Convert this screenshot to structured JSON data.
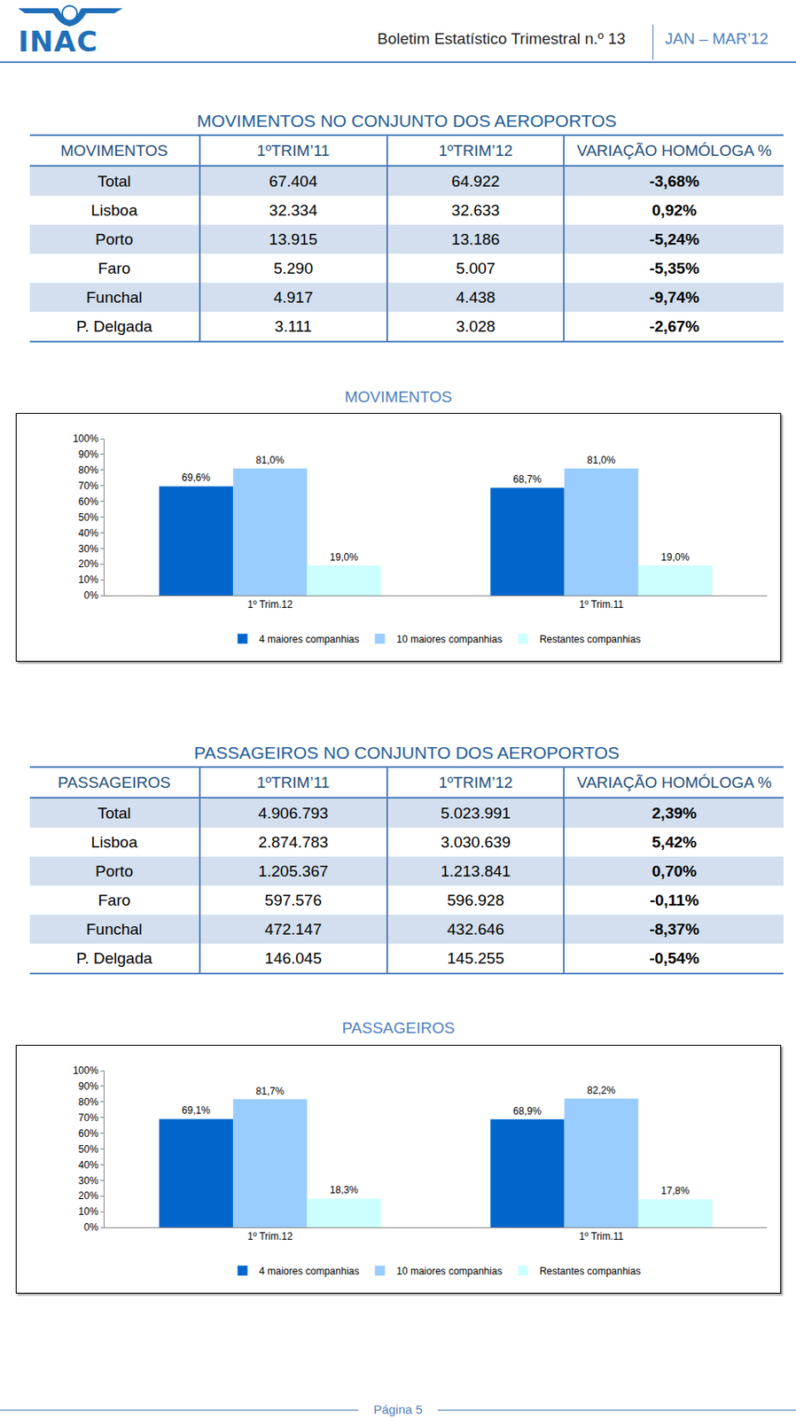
{
  "header": {
    "logo": "INAC",
    "title": "Boletim Estatístico Trimestral n.º 13",
    "period": "JAN – MAR’12"
  },
  "tables": [
    {
      "title": "MOVIMENTOS NO CONJUNTO DOS AEROPORTOS",
      "columns": [
        "MOVIMENTOS",
        "1ºTRIM’11",
        "1ºTRIM’12",
        "VARIAÇÃO HOMÓLOGA %"
      ],
      "rows": [
        [
          "Total",
          "67.404",
          "64.922",
          "-3,68%"
        ],
        [
          "Lisboa",
          "32.334",
          "32.633",
          "0,92%"
        ],
        [
          "Porto",
          "13.915",
          "13.186",
          "-5,24%"
        ],
        [
          "Faro",
          "5.290",
          "5.007",
          "-5,35%"
        ],
        [
          "Funchal",
          "4.917",
          "4.438",
          "-9,74%"
        ],
        [
          "P. Delgada",
          "3.111",
          "3.028",
          "-2,67%"
        ]
      ]
    },
    {
      "title": "PASSAGEIROS NO CONJUNTO DOS AEROPORTOS",
      "columns": [
        "PASSAGEIROS",
        "1ºTRIM’11",
        "1ºTRIM’12",
        "VARIAÇÃO HOMÓLOGA %"
      ],
      "rows": [
        [
          "Total",
          "4.906.793",
          "5.023.991",
          "2,39%"
        ],
        [
          "Lisboa",
          "2.874.783",
          "3.030.639",
          "5,42%"
        ],
        [
          "Porto",
          "1.205.367",
          "1.213.841",
          "0,70%"
        ],
        [
          "Faro",
          "597.576",
          "596.928",
          "-0,11%"
        ],
        [
          "Funchal",
          "472.147",
          "432.646",
          "-8,37%"
        ],
        [
          "P. Delgada",
          "146.045",
          "145.255",
          "-0,54%"
        ]
      ]
    }
  ],
  "chart_data": [
    {
      "type": "bar",
      "title": "MOVIMENTOS",
      "categories": [
        "1º Trim.12",
        "1º Trim.11"
      ],
      "series": [
        {
          "name": "4 maiores companhias",
          "color": "#0066CC",
          "values": [
            69.6,
            68.7
          ],
          "value_labels": [
            "69,6%",
            "68,7%"
          ]
        },
        {
          "name": "10 maiores companhias",
          "color": "#99CCFF",
          "values": [
            81.0,
            81.0
          ],
          "value_labels": [
            "81,0%",
            "81,0%"
          ]
        },
        {
          "name": "Restantes companhias",
          "color": "#CCFFFF",
          "values": [
            19.0,
            19.0
          ],
          "value_labels": [
            "19,0%",
            "19,0%"
          ]
        }
      ],
      "ylim": [
        0,
        100
      ],
      "yticks": [
        {
          "value": 0,
          "label": "0%"
        },
        {
          "value": 10,
          "label": "10%"
        },
        {
          "value": 20,
          "label": "20%"
        },
        {
          "value": 30,
          "label": "30%"
        },
        {
          "value": 40,
          "label": "40%"
        },
        {
          "value": 50,
          "label": "50%"
        },
        {
          "value": 60,
          "label": "60%"
        },
        {
          "value": 70,
          "label": "70%"
        },
        {
          "value": 80,
          "label": "80%"
        },
        {
          "value": 90,
          "label": "90%"
        },
        {
          "value": 100,
          "label": "100%"
        }
      ],
      "grid": false,
      "legend": "bottom",
      "data_labels": true
    },
    {
      "type": "bar",
      "title": "PASSAGEIROS",
      "categories": [
        "1º Trim.12",
        "1º Trim.11"
      ],
      "series": [
        {
          "name": "4 maiores companhias",
          "color": "#0066CC",
          "values": [
            69.1,
            68.9
          ],
          "value_labels": [
            "69,1%",
            "68,9%"
          ]
        },
        {
          "name": "10 maiores companhias",
          "color": "#99CCFF",
          "values": [
            81.7,
            82.2
          ],
          "value_labels": [
            "81,7%",
            "82,2%"
          ]
        },
        {
          "name": "Restantes companhias",
          "color": "#CCFFFF",
          "values": [
            18.3,
            17.8
          ],
          "value_labels": [
            "18,3%",
            "17,8%"
          ]
        }
      ],
      "ylim": [
        0,
        100
      ],
      "yticks": [
        {
          "value": 0,
          "label": "0%"
        },
        {
          "value": 10,
          "label": "10%"
        },
        {
          "value": 20,
          "label": "20%"
        },
        {
          "value": 30,
          "label": "30%"
        },
        {
          "value": 40,
          "label": "40%"
        },
        {
          "value": 50,
          "label": "50%"
        },
        {
          "value": 60,
          "label": "60%"
        },
        {
          "value": 70,
          "label": "70%"
        },
        {
          "value": 80,
          "label": "80%"
        },
        {
          "value": 90,
          "label": "90%"
        },
        {
          "value": 100,
          "label": "100%"
        }
      ],
      "grid": false,
      "legend": "bottom",
      "data_labels": true
    }
  ],
  "footer": "Página 5"
}
